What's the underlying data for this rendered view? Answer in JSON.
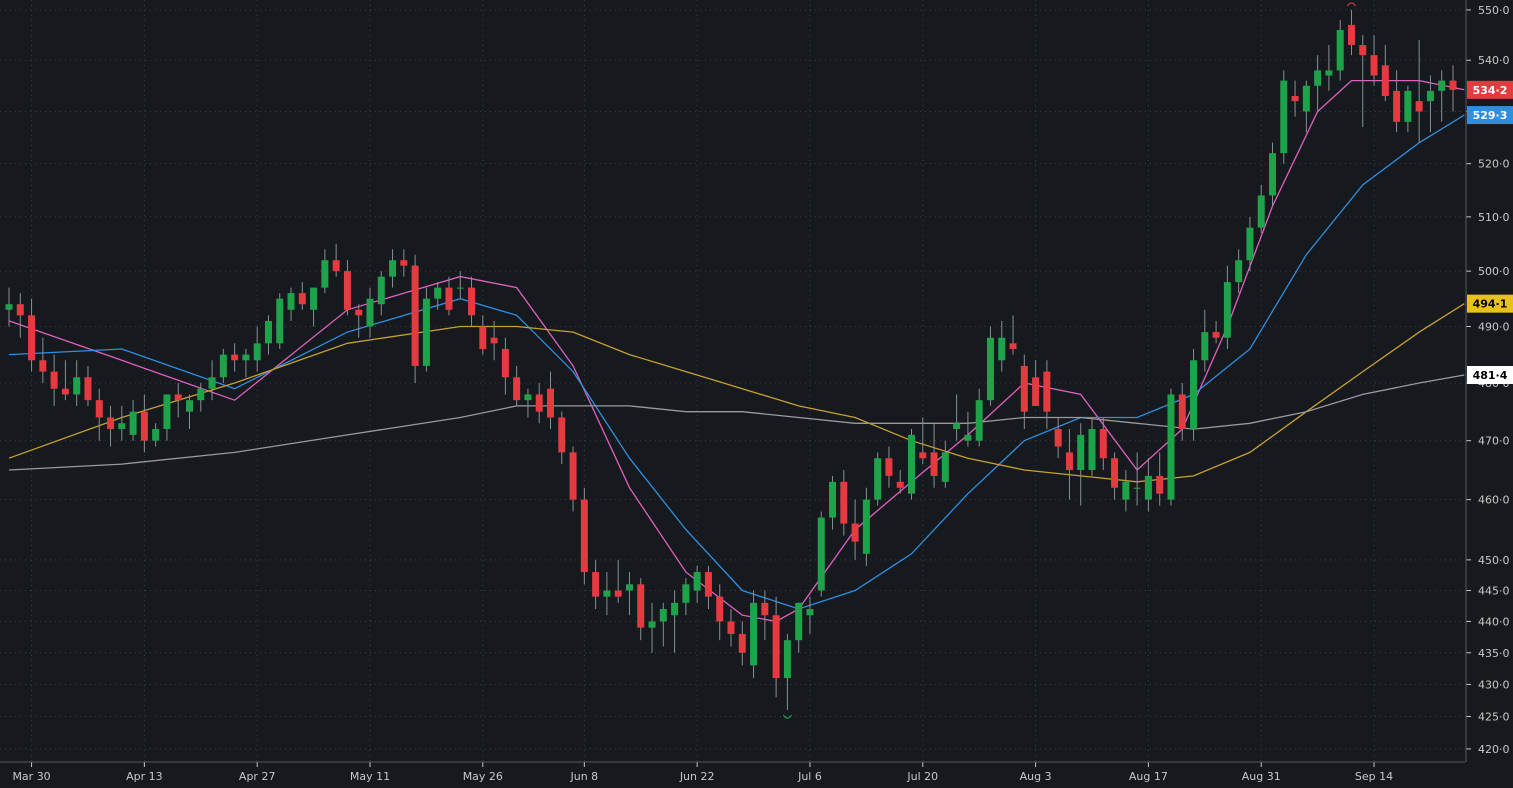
{
  "chart_data": {
    "type": "candlestick",
    "title": "",
    "xlabel": "",
    "ylabel": "",
    "ylim": [
      418,
      552
    ],
    "yscale": "log",
    "grid": true,
    "x_tick_labels": [
      "Mar 30",
      "Apr 13",
      "Apr 27",
      "May 11",
      "May 26",
      "Jun 8",
      "Jun 22",
      "Jul 6",
      "Jul 20",
      "Aug 3",
      "Aug 17",
      "Aug 31",
      "Sep 14"
    ],
    "y_tick_values": [
      420,
      425,
      430,
      435,
      440,
      445,
      450,
      460,
      470,
      480,
      490,
      500,
      510,
      520,
      530,
      540,
      550
    ],
    "y_tick_labels": [
      "420·0",
      "425·0",
      "430·0",
      "435·0",
      "440·0",
      "445·0",
      "450·0",
      "460·0",
      "470·0",
      "480·0",
      "490·0",
      "500·0",
      "510·0",
      "520·0",
      "530·0",
      "540·0",
      "550·0"
    ],
    "candles": [
      [
        "Mar 26",
        493,
        497,
        490,
        494
      ],
      [
        "Mar 27",
        494,
        496,
        488,
        492
      ],
      [
        "Mar 30",
        492,
        495,
        482,
        484
      ],
      [
        "Mar 31",
        484,
        488,
        480,
        482
      ],
      [
        "Apr 1",
        482,
        485,
        476,
        479
      ],
      [
        "Apr 2",
        479,
        484,
        477,
        478
      ],
      [
        "Apr 3",
        478,
        484,
        476,
        481
      ],
      [
        "Apr 6",
        481,
        483,
        476,
        477
      ],
      [
        "Apr 7",
        477,
        479,
        470,
        474
      ],
      [
        "Apr 8",
        474,
        476,
        469,
        472
      ],
      [
        "Apr 9",
        472,
        476,
        470,
        473
      ],
      [
        "Apr 10",
        471,
        477,
        470,
        475
      ],
      [
        "Apr 13",
        475,
        478,
        468,
        470
      ],
      [
        "Apr 14",
        470,
        473,
        469,
        472
      ],
      [
        "Apr 15",
        472,
        478,
        470,
        478
      ],
      [
        "Apr 16",
        478,
        480,
        474,
        477
      ],
      [
        "Apr 17",
        475,
        478,
        472,
        477
      ],
      [
        "Apr 20",
        477,
        480,
        475,
        479
      ],
      [
        "Apr 21",
        479,
        484,
        477,
        481
      ],
      [
        "Apr 22",
        481,
        486,
        480,
        485
      ],
      [
        "Apr 23",
        485,
        487,
        482,
        484
      ],
      [
        "Apr 24",
        484,
        486,
        481,
        485
      ],
      [
        "Apr 27",
        484,
        490,
        482,
        487
      ],
      [
        "Apr 28",
        487,
        492,
        485,
        491
      ],
      [
        "Apr 29",
        487,
        496,
        486,
        495
      ],
      [
        "Apr 30",
        493,
        497,
        491,
        496
      ],
      [
        "May 1",
        496,
        498,
        493,
        494
      ],
      [
        "May 4",
        493,
        497,
        490,
        497
      ],
      [
        "May 5",
        497,
        504,
        496,
        502
      ],
      [
        "May 6",
        502,
        505,
        499,
        500
      ],
      [
        "May 7",
        500,
        502,
        492,
        493
      ],
      [
        "May 8",
        493,
        494,
        488,
        492
      ],
      [
        "May 11",
        490,
        497,
        488,
        495
      ],
      [
        "May 12",
        494,
        500,
        492,
        499
      ],
      [
        "May 13",
        499,
        504,
        497,
        502
      ],
      [
        "May 14",
        502,
        504,
        499,
        501
      ],
      [
        "May 15",
        501,
        503,
        480,
        483
      ],
      [
        "May 18",
        483,
        497,
        482,
        495
      ],
      [
        "May 19",
        495,
        498,
        493,
        497
      ],
      [
        "May 20",
        497,
        499,
        492,
        493
      ],
      [
        "May 21",
        497,
        500,
        495,
        497
      ],
      [
        "May 22",
        497,
        499,
        490,
        492
      ],
      [
        "May 26",
        490,
        492,
        485,
        486
      ],
      [
        "May 27",
        488,
        491,
        484,
        487
      ],
      [
        "May 28",
        486,
        488,
        478,
        481
      ],
      [
        "May 29",
        481,
        483,
        476,
        477
      ],
      [
        "Jun 1",
        477,
        479,
        474,
        478
      ],
      [
        "Jun 2",
        478,
        480,
        473,
        475
      ],
      [
        "Jun 3",
        479,
        482,
        472,
        474
      ],
      [
        "Jun 4",
        474,
        475,
        466,
        468
      ],
      [
        "Jun 5",
        468,
        469,
        458,
        460
      ],
      [
        "Jun 8",
        460,
        462,
        446,
        448
      ],
      [
        "Jun 9",
        448,
        450,
        442,
        444
      ],
      [
        "Jun 10",
        444,
        448,
        441,
        445
      ],
      [
        "Jun 11",
        445,
        450,
        443,
        444
      ],
      [
        "Jun 12",
        445,
        448,
        441,
        446
      ],
      [
        "Jun 15",
        446,
        447,
        437,
        439
      ],
      [
        "Jun 16",
        439,
        443,
        435,
        440
      ],
      [
        "Jun 17",
        440,
        443,
        436,
        442
      ],
      [
        "Jun 18",
        441,
        445,
        435,
        443
      ],
      [
        "Jun 19",
        443,
        447,
        441,
        446
      ],
      [
        "Jun 22",
        445,
        449,
        443,
        448
      ],
      [
        "Jun 23",
        448,
        449,
        442,
        444
      ],
      [
        "Jun 24",
        444,
        446,
        437,
        440
      ],
      [
        "Jun 25",
        440,
        442,
        436,
        438
      ],
      [
        "Jun 26",
        438,
        440,
        433,
        435
      ],
      [
        "Jun 29",
        433,
        445,
        431,
        443
      ],
      [
        "Jun 30",
        443,
        445,
        437,
        441
      ],
      [
        "Jul 1",
        441,
        444,
        428,
        431
      ],
      [
        "Jul 2",
        431,
        438,
        426,
        437
      ],
      [
        "Jul 3",
        437,
        443,
        435,
        443
      ],
      [
        "Jul 6",
        441,
        444,
        438,
        442
      ],
      [
        "Jul 7",
        445,
        458,
        444,
        457
      ],
      [
        "Jul 8",
        457,
        464,
        455,
        463
      ],
      [
        "Jul 9",
        463,
        465,
        454,
        456
      ],
      [
        "Jul 10",
        456,
        460,
        450,
        453
      ],
      [
        "Jul 13",
        451,
        462,
        449,
        460
      ],
      [
        "Jul 14",
        460,
        468,
        459,
        467
      ],
      [
        "Jul 15",
        467,
        469,
        462,
        464
      ],
      [
        "Jul 16",
        463,
        465,
        461,
        462
      ],
      [
        "Jul 17",
        461,
        472,
        460,
        471
      ],
      [
        "Jul 20",
        468,
        474,
        466,
        467
      ],
      [
        "Jul 21",
        468,
        473,
        462,
        464
      ],
      [
        "Jul 22",
        463,
        470,
        462,
        468
      ],
      [
        "Jul 23",
        472,
        478,
        470,
        473
      ],
      [
        "Jul 24",
        470,
        475,
        469,
        471
      ],
      [
        "Jul 27",
        470,
        479,
        469,
        477
      ],
      [
        "Jul 28",
        477,
        490,
        476,
        488
      ],
      [
        "Jul 29",
        484,
        491,
        482,
        488
      ],
      [
        "Jul 30",
        487,
        492,
        485,
        486
      ],
      [
        "Jul 31",
        483,
        485,
        472,
        475
      ],
      [
        "Aug 3",
        481,
        484,
        476,
        476
      ],
      [
        "Aug 4",
        482,
        484,
        472,
        475
      ],
      [
        "Aug 5",
        472,
        474,
        467,
        469
      ],
      [
        "Aug 6",
        468,
        472,
        460,
        465
      ],
      [
        "Aug 7",
        465,
        473,
        459,
        471
      ],
      [
        "Aug 10",
        465,
        474,
        464,
        472
      ],
      [
        "Aug 11",
        472,
        474,
        465,
        467
      ],
      [
        "Aug 12",
        467,
        468,
        460,
        462
      ],
      [
        "Aug 13",
        460,
        465,
        458,
        463
      ],
      [
        "Aug 14",
        462,
        468,
        459,
        462
      ],
      [
        "Aug 17",
        460,
        467,
        458,
        464
      ],
      [
        "Aug 18",
        464,
        468,
        459,
        461
      ],
      [
        "Aug 19",
        460,
        479,
        459,
        478
      ],
      [
        "Aug 20",
        478,
        480,
        470,
        472
      ],
      [
        "Aug 21",
        472,
        486,
        470,
        484
      ],
      [
        "Aug 24",
        484,
        493,
        482,
        489
      ],
      [
        "Aug 25",
        489,
        491,
        487,
        488
      ],
      [
        "Aug 26",
        488,
        501,
        486,
        498
      ],
      [
        "Aug 27",
        498,
        504,
        496,
        502
      ],
      [
        "Aug 28",
        502,
        510,
        500,
        508
      ],
      [
        "Aug 31",
        508,
        516,
        507,
        514
      ],
      [
        "Sep 1",
        514,
        524,
        512,
        522
      ],
      [
        "Sep 2",
        522,
        538,
        520,
        536
      ],
      [
        "Sep 3",
        533,
        536,
        529,
        532
      ],
      [
        "Sep 4",
        530,
        536,
        526,
        535
      ],
      [
        "Sep 7",
        535,
        541,
        530,
        538
      ],
      [
        "Sep 8",
        537,
        543,
        534,
        538
      ],
      [
        "Sep 9",
        538,
        548,
        536,
        546
      ],
      [
        "Sep 10",
        547,
        550,
        541,
        543
      ],
      [
        "Sep 11",
        543,
        545,
        527,
        541
      ],
      [
        "Sep 14",
        541,
        545,
        535,
        537
      ],
      [
        "Sep 15",
        539,
        543,
        532,
        533
      ],
      [
        "Sep 16",
        534,
        538,
        526,
        528
      ],
      [
        "Sep 17",
        528,
        535,
        526,
        534
      ],
      [
        "Sep 18",
        532,
        544,
        524,
        530
      ],
      [
        "Sep 21",
        532,
        537,
        526,
        534
      ],
      [
        "Sep 22",
        534,
        538,
        528,
        536
      ],
      [
        "Sep 23",
        536,
        539,
        530,
        534.2
      ]
    ],
    "series": [
      {
        "color": "#e060c0",
        "values": [
          [
            0,
            491
          ],
          [
            10,
            484
          ],
          [
            20,
            477
          ],
          [
            30,
            493
          ],
          [
            40,
            499
          ],
          [
            45,
            497
          ],
          [
            50,
            483
          ],
          [
            55,
            462
          ],
          [
            60,
            448
          ],
          [
            65,
            441
          ],
          [
            68,
            440
          ],
          [
            70,
            442
          ],
          [
            75,
            455
          ],
          [
            80,
            463
          ],
          [
            85,
            471
          ],
          [
            90,
            480
          ],
          [
            95,
            478
          ],
          [
            100,
            465
          ],
          [
            104,
            472
          ],
          [
            108,
            490
          ],
          [
            112,
            512
          ],
          [
            116,
            530
          ],
          [
            119,
            536
          ],
          [
            125,
            536
          ],
          [
            129,
            534.2
          ]
        ]
      },
      {
        "color": "#2e8fe0",
        "values": [
          [
            0,
            485
          ],
          [
            10,
            486
          ],
          [
            20,
            479
          ],
          [
            30,
            489
          ],
          [
            40,
            495
          ],
          [
            45,
            492
          ],
          [
            50,
            482
          ],
          [
            55,
            467
          ],
          [
            60,
            455
          ],
          [
            65,
            445
          ],
          [
            70,
            442
          ],
          [
            75,
            445
          ],
          [
            80,
            451
          ],
          [
            85,
            461
          ],
          [
            90,
            470
          ],
          [
            95,
            474
          ],
          [
            100,
            474
          ],
          [
            105,
            478
          ],
          [
            110,
            486
          ],
          [
            115,
            503
          ],
          [
            120,
            516
          ],
          [
            125,
            524
          ],
          [
            129,
            529.3
          ]
        ]
      },
      {
        "color": "#c8a030",
        "values": [
          [
            0,
            467
          ],
          [
            10,
            474
          ],
          [
            20,
            480
          ],
          [
            30,
            487
          ],
          [
            40,
            490
          ],
          [
            45,
            490
          ],
          [
            50,
            489
          ],
          [
            55,
            485
          ],
          [
            60,
            482
          ],
          [
            65,
            479
          ],
          [
            70,
            476
          ],
          [
            75,
            474
          ],
          [
            80,
            470
          ],
          [
            85,
            467
          ],
          [
            90,
            465
          ],
          [
            95,
            464
          ],
          [
            100,
            463
          ],
          [
            105,
            464
          ],
          [
            110,
            468
          ],
          [
            115,
            475
          ],
          [
            120,
            482
          ],
          [
            125,
            489
          ],
          [
            129,
            494.1
          ]
        ]
      },
      {
        "color": "#9a9a9a",
        "values": [
          [
            0,
            465
          ],
          [
            10,
            466
          ],
          [
            20,
            468
          ],
          [
            30,
            471
          ],
          [
            40,
            474
          ],
          [
            45,
            476
          ],
          [
            50,
            476
          ],
          [
            55,
            476
          ],
          [
            60,
            475
          ],
          [
            65,
            475
          ],
          [
            70,
            474
          ],
          [
            75,
            473
          ],
          [
            80,
            473
          ],
          [
            85,
            473
          ],
          [
            90,
            474
          ],
          [
            95,
            474
          ],
          [
            100,
            473
          ],
          [
            105,
            472
          ],
          [
            110,
            473
          ],
          [
            115,
            475
          ],
          [
            120,
            478
          ],
          [
            125,
            480
          ],
          [
            129,
            481.4
          ]
        ]
      }
    ],
    "price_tags": [
      {
        "label": "534·2",
        "value": 534.2,
        "bg": "#e53a40",
        "fg": "#ffffff"
      },
      {
        "label": "529·3",
        "value": 529.3,
        "bg": "#2e8fe0",
        "fg": "#ffffff"
      },
      {
        "label": "494·1",
        "value": 494.1,
        "bg": "#e8c020",
        "fg": "#000000"
      },
      {
        "label": "481·4",
        "value": 481.4,
        "bg": "#ffffff",
        "fg": "#000000"
      }
    ],
    "colors": {
      "background": "#161a1e",
      "grid": "#3a3f45",
      "axis_text": "#c8c8c8",
      "up": "#1fa34a",
      "down": "#e53a40"
    }
  }
}
